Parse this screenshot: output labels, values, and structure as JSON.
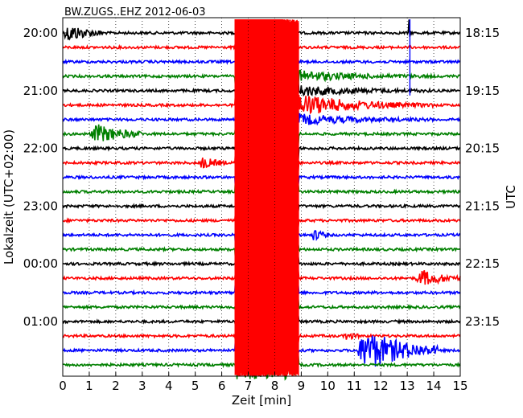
{
  "chart_data": {
    "type": "line",
    "title": "BW.ZUGS..EHZ 2012-06-03",
    "xlabel": "Zeit  [min]",
    "ylabel_left": "Lokalzeit (UTC+02:00)",
    "ylabel_right": "UTC",
    "xlim": [
      0,
      15
    ],
    "x_ticks": [
      "0",
      "1",
      "2",
      "3",
      "4",
      "5",
      "6",
      "7",
      "8",
      "9",
      "10",
      "11",
      "12",
      "13",
      "14",
      "15"
    ],
    "left_tick_labels": [
      "20:00",
      "21:00",
      "22:00",
      "23:00",
      "00:00",
      "01:00"
    ],
    "right_tick_labels": [
      "18:15",
      "19:15",
      "20:15",
      "21:15",
      "22:15",
      "23:15"
    ],
    "trace_colors": [
      "#000000",
      "#ff0000",
      "#0000ff",
      "#008000"
    ],
    "trace_count": 24,
    "trace_interval_minutes": 15,
    "events": [
      {
        "trace": 0,
        "start_min": 0.0,
        "end_min": 1.5,
        "peak": 1.3
      },
      {
        "trace": 0,
        "start_min": 13.05,
        "end_min": 13.15,
        "peak": 2.0
      },
      {
        "trace": 7,
        "start_min": 1.0,
        "end_min": 3.0,
        "peak": 1.4
      },
      {
        "trace": 9,
        "start_min": 5.1,
        "end_min": 6.2,
        "peak": 0.8
      },
      {
        "trace": 14,
        "start_min": 9.4,
        "end_min": 10.0,
        "peak": 0.9
      },
      {
        "trace": 17,
        "start_min": 13.3,
        "end_min": 15.0,
        "peak": 1.2
      },
      {
        "trace": 21,
        "start_min": 10.6,
        "end_min": 11.2,
        "peak": 0.6
      },
      {
        "trace": 22,
        "start_min": 11.0,
        "end_min": 14.2,
        "peak": 3.0
      }
    ],
    "main_quake": {
      "trace_start": 1,
      "trace_end": 23,
      "start_min": 6.5,
      "end_min": 8.9,
      "color": "#ff0000"
    },
    "grid": "vertical dotted at each minute"
  }
}
